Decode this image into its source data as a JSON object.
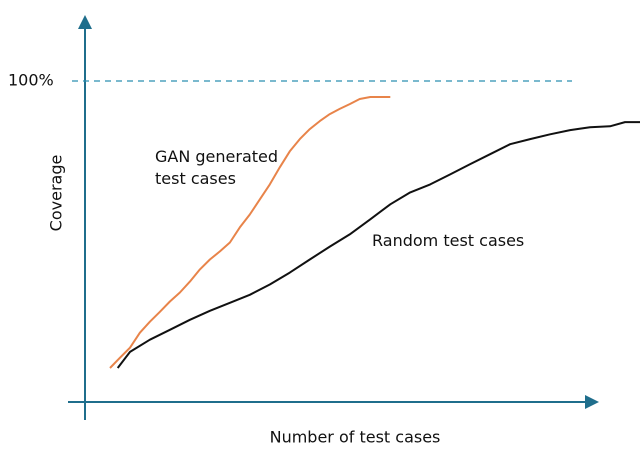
{
  "chart_data": {
    "type": "line",
    "xlabel": "Number of test cases",
    "ylabel": "Coverage",
    "xlim": [
      0,
      100
    ],
    "ylim": [
      0,
      119
    ],
    "yticks": [
      {
        "value": 100,
        "label": "100%"
      }
    ],
    "grid": true,
    "series": [
      {
        "name": "GAN generated test cases",
        "color": "#e8844a",
        "x": [
          4.5,
          6.3,
          8.1,
          9.9,
          11.7,
          13.5,
          15.3,
          17.1,
          18.9,
          20.7,
          22.5,
          24.3,
          26.1,
          27.9,
          29.7,
          31.5,
          33.3,
          35.1,
          36.9,
          38.7,
          40.5,
          42.3,
          44.1,
          45.9,
          47.7,
          49.5,
          51.4,
          55.0
        ],
        "values": [
          10.6,
          13.8,
          16.9,
          21.6,
          25.0,
          28.1,
          31.3,
          34.1,
          37.5,
          41.3,
          44.4,
          46.9,
          49.7,
          54.4,
          58.4,
          63.1,
          67.8,
          73.1,
          78.1,
          81.9,
          85.0,
          87.5,
          89.7,
          91.3,
          92.8,
          94.4,
          95.0,
          95.0
        ]
      },
      {
        "name": "Random test cases",
        "color": "#111111",
        "x": [
          5.9,
          8.1,
          11.7,
          15.3,
          18.9,
          22.5,
          26.1,
          29.7,
          33.3,
          36.9,
          40.5,
          44.1,
          47.7,
          51.4,
          55.0,
          58.6,
          62.2,
          65.8,
          69.4,
          73.0,
          76.6,
          80.2,
          83.8,
          87.4,
          91.0,
          94.6,
          97.3,
          100
        ],
        "values": [
          10.6,
          15.6,
          19.4,
          22.5,
          25.6,
          28.4,
          30.9,
          33.4,
          36.6,
          40.3,
          44.4,
          48.4,
          52.2,
          56.9,
          61.6,
          65.3,
          67.8,
          70.9,
          74.1,
          77.2,
          80.3,
          81.9,
          83.4,
          84.7,
          85.6,
          85.9,
          87.2,
          87.2
        ]
      }
    ]
  }
}
